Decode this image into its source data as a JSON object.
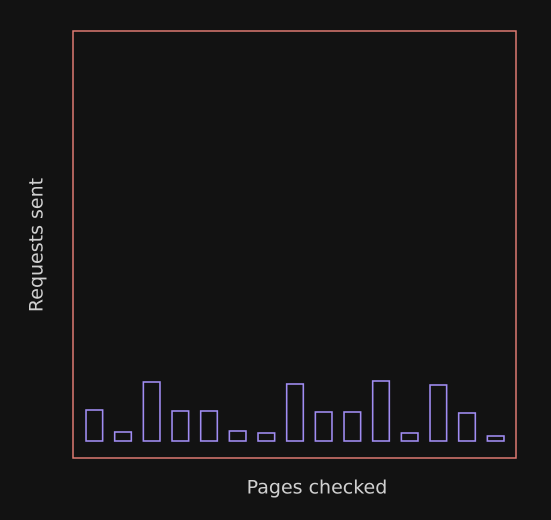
{
  "chart_data": {
    "type": "bar",
    "x_label": "Pages checked",
    "y_label": "Requests sent",
    "categories": [
      null,
      null,
      null,
      null,
      null,
      null,
      null,
      null,
      null,
      null,
      null,
      null,
      null,
      null,
      null
    ],
    "values": [
      31,
      9,
      59,
      30,
      30,
      10,
      8,
      57,
      29,
      29,
      60,
      8,
      56,
      28,
      5
    ],
    "color": "#a08cf2",
    "frame_color": "#e07a72",
    "ylim": [
      0,
      410
    ]
  }
}
